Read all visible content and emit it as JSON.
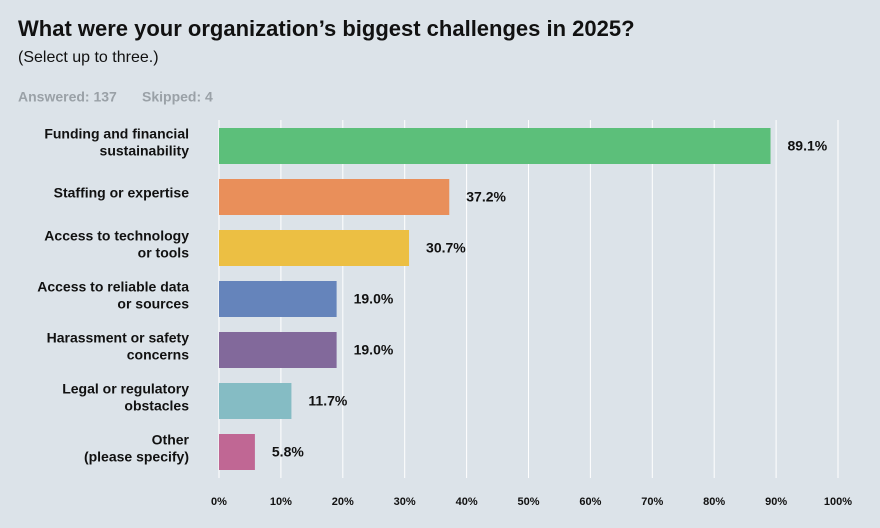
{
  "chart_data": {
    "type": "barh",
    "title": "What were your organization’s biggest challenges in 2025?",
    "subtitle": "(Select up to three.)",
    "answered": "Answered: 137",
    "skipped": "Skipped: 4",
    "categories": [
      "Funding and financial\nsustainability",
      "Staffing or expertise",
      "Access to technology\nor tools",
      "Access to reliable data\nor sources",
      "Harassment or safety\nconcerns",
      "Legal or regulatory\nobstacles",
      "Other\n(please specify)"
    ],
    "values": [
      89.1,
      37.2,
      30.7,
      19.0,
      19.0,
      11.7,
      5.8
    ],
    "value_labels": [
      "89.1%",
      "37.2%",
      "30.7%",
      "19.0%",
      "19.0%",
      "11.7%",
      "5.8%"
    ],
    "colors": [
      "#5cbf7a",
      "#e98f5a",
      "#ecbf43",
      "#6584bb",
      "#82699b",
      "#85bcc4",
      "#c06794"
    ],
    "xlim": [
      0,
      100
    ],
    "xticks": [
      {
        "value": 0,
        "label": "0%"
      },
      {
        "value": 10,
        "label": "10%"
      },
      {
        "value": 20,
        "label": "20%"
      },
      {
        "value": 30,
        "label": "30%"
      },
      {
        "value": 40,
        "label": "40%"
      },
      {
        "value": 50,
        "label": "50%"
      },
      {
        "value": 60,
        "label": "60%"
      },
      {
        "value": 70,
        "label": "70%"
      },
      {
        "value": 80,
        "label": "80%"
      },
      {
        "value": 90,
        "label": "90%"
      },
      {
        "value": 100,
        "label": "100%"
      }
    ],
    "grid": true
  }
}
